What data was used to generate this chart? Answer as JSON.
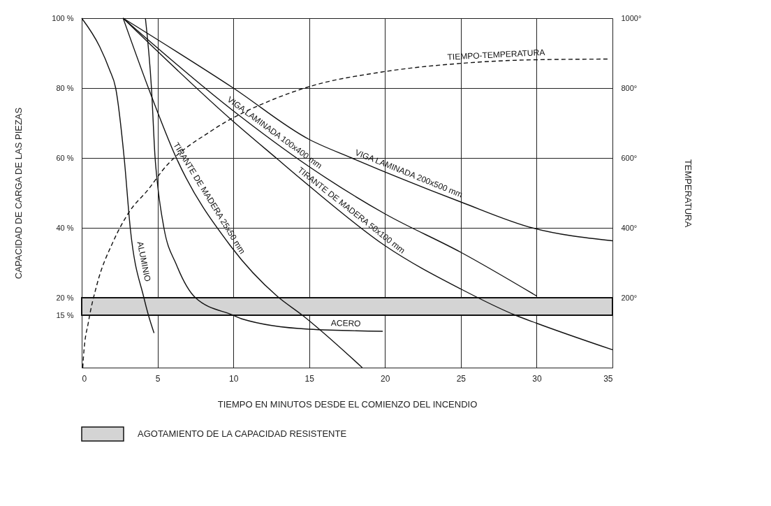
{
  "chart_data": {
    "type": "line",
    "xlabel": "TIEMPO EN MINUTOS DESDE EL COMIENZO DEL INCENDIO",
    "ylabel": "CAPACIDAD DE CARGA DE LAS PIEZAS",
    "y2label": "TEMPERATURA",
    "xlim": [
      0,
      35
    ],
    "xticks": [
      0,
      5,
      10,
      15,
      20,
      25,
      30,
      35
    ],
    "ylim": [
      0,
      100
    ],
    "yticks": [
      {
        "value": 15,
        "label": "15 %"
      },
      {
        "value": 20,
        "label": "20 %"
      },
      {
        "value": 40,
        "label": "40 %"
      },
      {
        "value": 60,
        "label": "60 %"
      },
      {
        "value": 80,
        "label": "80 %"
      },
      {
        "value": 100,
        "label": "100 %"
      }
    ],
    "y2lim": [
      0,
      1000
    ],
    "y2ticks": [
      {
        "value": 200,
        "label": "200°"
      },
      {
        "value": 400,
        "label": "400°"
      },
      {
        "value": 600,
        "label": "600°"
      },
      {
        "value": 800,
        "label": "800°"
      },
      {
        "value": 1000,
        "label": "1000°"
      }
    ],
    "grid": true,
    "legend": "bottom",
    "marker": "none",
    "bands": [
      {
        "axis": "y",
        "from": 15,
        "to": 20,
        "label": "AGOTAMIENTO DE LA CAPACIDAD RESISTENTE",
        "color": "#d4d4d4"
      }
    ],
    "series": [
      {
        "name": "ALUMINIO",
        "color": "#111111",
        "line_style": "solid",
        "x": [
          0,
          1.19,
          1.83,
          2.24,
          2.8,
          3.2,
          4.1,
          4.4,
          4.77
        ],
        "values": [
          100,
          91.8,
          85.3,
          80,
          60,
          40,
          20,
          15,
          9.9
        ]
      },
      {
        "name": "ACERO",
        "color": "#111111",
        "line_style": "solid",
        "x": [
          4.2,
          4.6,
          4.84,
          5.0,
          5.42,
          6.24,
          7.5,
          9.99,
          10.6,
          14.96,
          19.85
        ],
        "values": [
          100,
          80,
          60,
          52.5,
          40,
          29.5,
          20,
          15,
          13.9,
          11,
          10.4
        ]
      },
      {
        "name": "TIRANTE DE MADERA 25x50 mm",
        "color": "#111111",
        "line_style": "solid",
        "x": [
          2.73,
          4.4,
          6.24,
          9.8,
          12.9,
          14.55,
          18.5
        ],
        "values": [
          100,
          80,
          60,
          34.9,
          20.4,
          15,
          0
        ]
      },
      {
        "name": "TIRANTE DE MADERA 50x100 mm",
        "color": "#111111",
        "line_style": "solid",
        "x": [
          2.73,
          9.9,
          12.9,
          15,
          20,
          25,
          28.6,
          30,
          35
        ],
        "values": [
          100,
          70.8,
          59.7,
          52,
          34.9,
          22.5,
          15,
          12.7,
          5.1
        ]
      },
      {
        "name": "VIGA LAMINADA 100x400 mm",
        "color": "#111111",
        "line_style": "solid",
        "x": [
          2.73,
          9.9,
          15,
          20,
          25,
          30
        ],
        "values": [
          100,
          73.8,
          57.5,
          44,
          33,
          20.5
        ]
      },
      {
        "name": "VIGA LAMINADA 200x500 mm",
        "color": "#111111",
        "line_style": "solid",
        "x": [
          2.73,
          10,
          15,
          17.8,
          25,
          29.7,
          35
        ],
        "values": [
          100,
          80,
          65.3,
          60,
          47.4,
          40,
          36.3
        ]
      },
      {
        "name": "TIEMPO-TEMPERATURA",
        "color": "#111111",
        "line_style": "dashed",
        "axis": "y2",
        "x": [
          0.07,
          0.12,
          0.45,
          1.0,
          2.08,
          3.14,
          4.43,
          5.34,
          8.6,
          12.6,
          15,
          19.8,
          24.8,
          29.9,
          34.8
        ],
        "values": [
          0,
          34,
          132,
          237,
          361,
          446,
          512,
          565,
          679,
          767,
          804,
          846,
          870,
          881,
          883
        ]
      }
    ]
  }
}
